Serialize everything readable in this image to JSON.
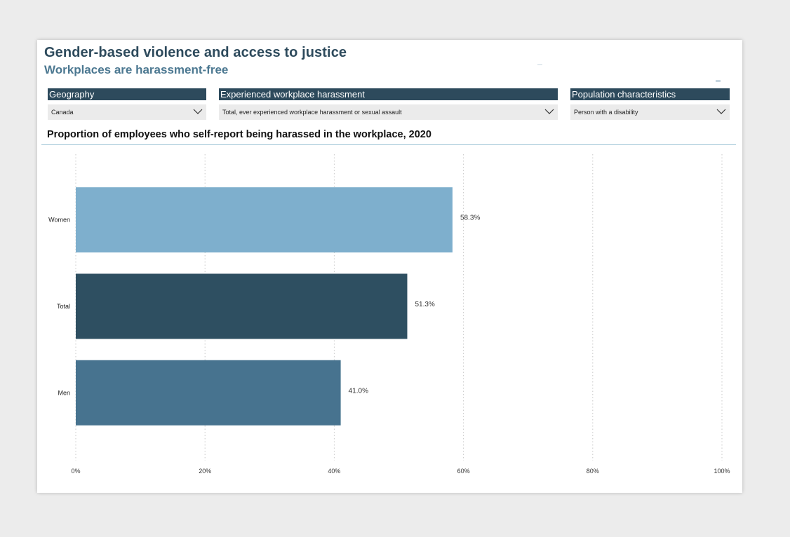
{
  "header": {
    "title": "Gender-based violence and access to justice",
    "subtitle": "Workplaces are harassment-free"
  },
  "filters": [
    {
      "label": "Geography",
      "value": "Canada"
    },
    {
      "label": "Experienced workplace harassment",
      "value": "Total, ever experienced workplace harassment or sexual assault"
    },
    {
      "label": "Population characteristics",
      "value": "Person with a disability"
    }
  ],
  "chart_title": "Proportion of employees who self-report being harassed in the workplace, 2020",
  "colors": {
    "dark_slate": "#2d4a5c",
    "women_bar": "#7eafcd",
    "total_bar": "#2e4f61",
    "men_bar": "#47738f"
  },
  "chart_data": {
    "type": "bar",
    "orientation": "horizontal",
    "title": "Proportion of employees who self-report being harassed in the workplace, 2020",
    "categories": [
      "Women",
      "Total",
      "Men"
    ],
    "values": [
      58.3,
      51.3,
      41.0
    ],
    "value_labels": [
      "58.3%",
      "51.3%",
      "41.0%"
    ],
    "bar_colors": [
      "#7eafcd",
      "#2e4f61",
      "#47738f"
    ],
    "xlim": [
      0,
      100
    ],
    "x_ticks": [
      0,
      20,
      40,
      60,
      80,
      100
    ],
    "x_tick_labels": [
      "0%",
      "20%",
      "40%",
      "60%",
      "80%",
      "100%"
    ],
    "grid": "vertical dotted",
    "legend": "none"
  }
}
